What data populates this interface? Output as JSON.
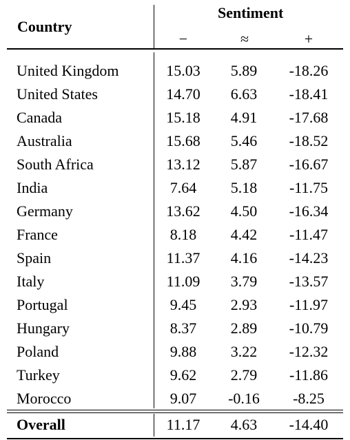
{
  "header": {
    "country_label": "Country",
    "group_label": "Sentiment",
    "neg_symbol": "−",
    "neu_symbol": "≈",
    "pos_symbol": "+"
  },
  "rows": [
    {
      "country": "United Kingdom",
      "neg": "15.03",
      "neu": "5.89",
      "pos": "-18.26"
    },
    {
      "country": "United States",
      "neg": "14.70",
      "neu": "6.63",
      "pos": "-18.41"
    },
    {
      "country": "Canada",
      "neg": "15.18",
      "neu": "4.91",
      "pos": "-17.68"
    },
    {
      "country": "Australia",
      "neg": "15.68",
      "neu": "5.46",
      "pos": "-18.52"
    },
    {
      "country": "South Africa",
      "neg": "13.12",
      "neu": "5.87",
      "pos": "-16.67"
    },
    {
      "country": "India",
      "neg": "7.64",
      "neu": "5.18",
      "pos": "-11.75"
    },
    {
      "country": "Germany",
      "neg": "13.62",
      "neu": "4.50",
      "pos": "-16.34"
    },
    {
      "country": "France",
      "neg": "8.18",
      "neu": "4.42",
      "pos": "-11.47"
    },
    {
      "country": "Spain",
      "neg": "11.37",
      "neu": "4.16",
      "pos": "-14.23"
    },
    {
      "country": "Italy",
      "neg": "11.09",
      "neu": "3.79",
      "pos": "-13.57"
    },
    {
      "country": "Portugal",
      "neg": "9.45",
      "neu": "2.93",
      "pos": "-11.97"
    },
    {
      "country": "Hungary",
      "neg": "8.37",
      "neu": "2.89",
      "pos": "-10.79"
    },
    {
      "country": "Poland",
      "neg": "9.88",
      "neu": "3.22",
      "pos": "-12.32"
    },
    {
      "country": "Turkey",
      "neg": "9.62",
      "neu": "2.79",
      "pos": "-11.86"
    },
    {
      "country": "Morocco",
      "neg": "9.07",
      "neu": "-0.16",
      "pos": "-8.25"
    }
  ],
  "overall": {
    "country": "Overall",
    "neg": "11.17",
    "neu": "4.63",
    "pos": "-14.40"
  }
}
